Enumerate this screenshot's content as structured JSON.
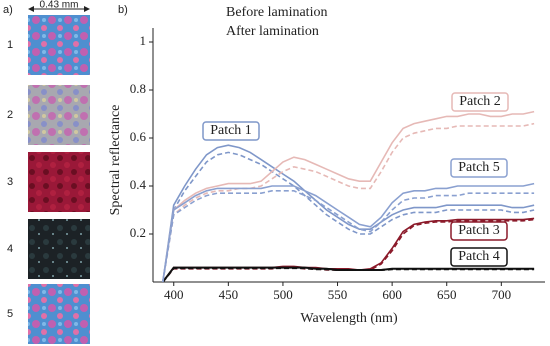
{
  "panel_a": {
    "label": "a)",
    "scale": "0.43 mm",
    "patches": [
      "1",
      "2",
      "3",
      "4",
      "5"
    ]
  },
  "chart_data": {
    "type": "line",
    "panel_label": "b)",
    "xlabel": "Wavelength (nm)",
    "ylabel": "Spectral reflectance",
    "legend": {
      "entries": [
        "Before lamination",
        "After lamination"
      ],
      "position": "upper left"
    },
    "x": [
      390,
      400,
      410,
      420,
      430,
      440,
      450,
      460,
      470,
      480,
      490,
      500,
      510,
      520,
      530,
      540,
      550,
      560,
      570,
      580,
      590,
      600,
      610,
      620,
      630,
      640,
      650,
      660,
      670,
      680,
      690,
      700,
      710,
      720,
      730
    ],
    "xlim": [
      381,
      740
    ],
    "xticks": [
      400,
      450,
      500,
      550,
      600,
      650,
      700
    ],
    "ylim": [
      0,
      1.05
    ],
    "yticks": [
      0.2,
      0.4,
      0.6,
      0.8,
      1
    ],
    "series": [
      {
        "name": "Patch 1",
        "color": "#7f97c9",
        "values": [
          0,
          0.32,
          0.4,
          0.47,
          0.53,
          0.56,
          0.57,
          0.56,
          0.54,
          0.51,
          0.48,
          0.45,
          0.42,
          0.38,
          0.34,
          0.3,
          0.27,
          0.24,
          0.22,
          0.22,
          0.25,
          0.28,
          0.3,
          0.31,
          0.31,
          0.31,
          0.32,
          0.32,
          0.32,
          0.32,
          0.32,
          0.32,
          0.31,
          0.31,
          0.32
        ],
        "after_values": [
          0,
          0.3,
          0.38,
          0.44,
          0.5,
          0.53,
          0.54,
          0.53,
          0.51,
          0.49,
          0.46,
          0.43,
          0.4,
          0.36,
          0.32,
          0.28,
          0.25,
          0.22,
          0.2,
          0.2,
          0.23,
          0.26,
          0.28,
          0.29,
          0.29,
          0.29,
          0.3,
          0.3,
          0.3,
          0.3,
          0.3,
          0.3,
          0.29,
          0.29,
          0.3
        ]
      },
      {
        "name": "Patch 2",
        "color": "#e6b9b6",
        "values": [
          0,
          0.3,
          0.34,
          0.37,
          0.39,
          0.4,
          0.41,
          0.41,
          0.41,
          0.42,
          0.46,
          0.5,
          0.52,
          0.51,
          0.49,
          0.47,
          0.45,
          0.43,
          0.42,
          0.42,
          0.5,
          0.58,
          0.64,
          0.66,
          0.67,
          0.68,
          0.69,
          0.69,
          0.7,
          0.7,
          0.69,
          0.69,
          0.7,
          0.7,
          0.71
        ],
        "after_values": [
          0,
          0.28,
          0.32,
          0.35,
          0.37,
          0.38,
          0.38,
          0.39,
          0.39,
          0.4,
          0.43,
          0.46,
          0.48,
          0.47,
          0.46,
          0.44,
          0.42,
          0.4,
          0.39,
          0.39,
          0.46,
          0.54,
          0.6,
          0.62,
          0.63,
          0.64,
          0.64,
          0.65,
          0.65,
          0.65,
          0.65,
          0.65,
          0.65,
          0.65,
          0.66
        ]
      },
      {
        "name": "Patch 3",
        "color": "#8b1a2a",
        "values": [
          0,
          0.06,
          0.06,
          0.06,
          0.06,
          0.06,
          0.06,
          0.06,
          0.06,
          0.06,
          0.06,
          0.065,
          0.065,
          0.06,
          0.06,
          0.055,
          0.055,
          0.055,
          0.05,
          0.055,
          0.08,
          0.14,
          0.21,
          0.24,
          0.25,
          0.255,
          0.255,
          0.26,
          0.26,
          0.26,
          0.26,
          0.26,
          0.26,
          0.26,
          0.265
        ],
        "after_values": [
          0,
          0.055,
          0.055,
          0.055,
          0.055,
          0.055,
          0.055,
          0.055,
          0.055,
          0.055,
          0.055,
          0.06,
          0.06,
          0.055,
          0.055,
          0.05,
          0.05,
          0.05,
          0.05,
          0.05,
          0.075,
          0.13,
          0.2,
          0.235,
          0.245,
          0.25,
          0.25,
          0.255,
          0.255,
          0.255,
          0.255,
          0.255,
          0.255,
          0.255,
          0.26
        ]
      },
      {
        "name": "Patch 4",
        "color": "#111111",
        "values": [
          0,
          0.06,
          0.06,
          0.06,
          0.06,
          0.06,
          0.06,
          0.06,
          0.06,
          0.06,
          0.06,
          0.06,
          0.06,
          0.06,
          0.055,
          0.055,
          0.05,
          0.05,
          0.05,
          0.05,
          0.05,
          0.055,
          0.055,
          0.055,
          0.055,
          0.055,
          0.055,
          0.055,
          0.055,
          0.055,
          0.055,
          0.055,
          0.055,
          0.055,
          0.055
        ],
        "after_values": [
          0,
          0.058,
          0.058,
          0.058,
          0.058,
          0.058,
          0.058,
          0.058,
          0.058,
          0.058,
          0.058,
          0.058,
          0.058,
          0.058,
          0.053,
          0.053,
          0.05,
          0.05,
          0.05,
          0.05,
          0.05,
          0.053,
          0.053,
          0.053,
          0.053,
          0.053,
          0.053,
          0.053,
          0.053,
          0.053,
          0.053,
          0.053,
          0.053,
          0.053,
          0.053
        ]
      },
      {
        "name": "Patch 5",
        "color": "#8aa0d0",
        "values": [
          0,
          0.3,
          0.33,
          0.36,
          0.38,
          0.39,
          0.39,
          0.39,
          0.39,
          0.39,
          0.4,
          0.4,
          0.4,
          0.38,
          0.36,
          0.33,
          0.3,
          0.27,
          0.24,
          0.23,
          0.27,
          0.33,
          0.37,
          0.38,
          0.38,
          0.39,
          0.39,
          0.4,
          0.4,
          0.4,
          0.4,
          0.4,
          0.4,
          0.4,
          0.41
        ],
        "after_values": [
          0,
          0.28,
          0.31,
          0.34,
          0.36,
          0.37,
          0.37,
          0.37,
          0.37,
          0.37,
          0.38,
          0.38,
          0.38,
          0.36,
          0.34,
          0.31,
          0.28,
          0.25,
          0.22,
          0.21,
          0.25,
          0.3,
          0.34,
          0.35,
          0.35,
          0.36,
          0.36,
          0.36,
          0.37,
          0.37,
          0.37,
          0.37,
          0.37,
          0.37,
          0.37
        ]
      }
    ]
  }
}
